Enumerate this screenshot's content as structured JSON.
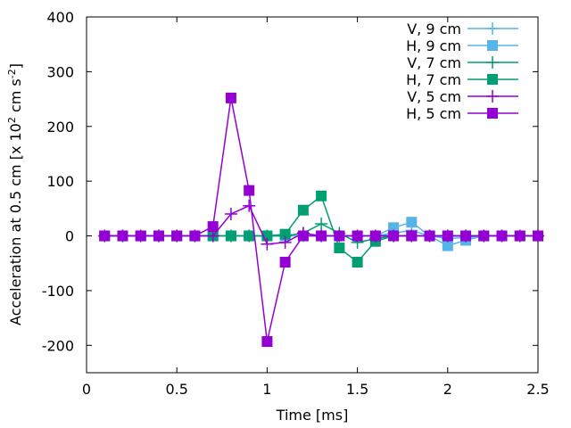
{
  "chart_data": {
    "type": "line",
    "title": "",
    "xlabel": "Time [ms]",
    "ylabel": {
      "base": "Acceleration at 0.5 cm [x 10",
      "sup1": "2",
      "mid": " cm s",
      "sup2": "-2",
      "end": "]"
    },
    "xlim": [
      0,
      2.5
    ],
    "ylim": [
      -250,
      400
    ],
    "xticks": [
      0,
      0.5,
      1,
      1.5,
      2,
      2.5
    ],
    "xtick_labels": [
      "0",
      "0.5",
      "1",
      "1.5",
      "2",
      "2.5"
    ],
    "yticks": [
      -200,
      -100,
      0,
      100,
      200,
      300,
      400
    ],
    "ytick_labels": [
      "-200",
      "-100",
      "0",
      "100",
      "200",
      "300",
      "400"
    ],
    "legend_position": "top-right",
    "x": [
      0.1,
      0.2,
      0.3,
      0.4,
      0.5,
      0.6,
      0.7,
      0.8,
      0.9,
      1.0,
      1.1,
      1.2,
      1.3,
      1.4,
      1.5,
      1.6,
      1.7,
      1.8,
      1.9,
      2.0,
      2.1,
      2.2,
      2.3,
      2.4,
      2.5
    ],
    "series": [
      {
        "name": "V, 9 cm",
        "color": "#56b4e9",
        "marker": "plus",
        "values": [
          0,
          0,
          0,
          0,
          0,
          0,
          0,
          0,
          0,
          0,
          0,
          0,
          0,
          0,
          0,
          0,
          5,
          10,
          0,
          -5,
          -3,
          0,
          0,
          0,
          0
        ]
      },
      {
        "name": "H, 9 cm",
        "color": "#56b4e9",
        "marker": "square",
        "values": [
          0,
          0,
          0,
          0,
          0,
          0,
          0,
          0,
          0,
          0,
          0,
          0,
          0,
          0,
          0,
          0,
          15,
          25,
          0,
          -18,
          -8,
          0,
          0,
          0,
          0
        ]
      },
      {
        "name": "V, 7 cm",
        "color": "#009e73",
        "marker": "plus",
        "values": [
          0,
          0,
          0,
          0,
          0,
          0,
          0,
          0,
          0,
          0,
          0,
          5,
          22,
          5,
          -12,
          -5,
          0,
          0,
          0,
          0,
          0,
          0,
          0,
          0,
          0
        ]
      },
      {
        "name": "H, 7 cm",
        "color": "#009e73",
        "marker": "square",
        "values": [
          0,
          0,
          0,
          0,
          0,
          0,
          0,
          0,
          0,
          0,
          3,
          47,
          73,
          -22,
          -48,
          -10,
          0,
          0,
          0,
          0,
          0,
          0,
          0,
          0,
          0
        ]
      },
      {
        "name": "V, 5 cm",
        "color": "#9400d3",
        "marker": "plus",
        "values": [
          0,
          0,
          0,
          0,
          0,
          0,
          0,
          40,
          55,
          -15,
          -12,
          5,
          0,
          0,
          0,
          0,
          0,
          0,
          0,
          0,
          0,
          0,
          0,
          0,
          0
        ]
      },
      {
        "name": "H, 5 cm",
        "color": "#9400d3",
        "marker": "square",
        "values": [
          0,
          0,
          0,
          0,
          0,
          0,
          17,
          252,
          83,
          -193,
          -48,
          0,
          0,
          0,
          0,
          0,
          0,
          0,
          0,
          0,
          0,
          0,
          0,
          0,
          0
        ]
      }
    ]
  }
}
